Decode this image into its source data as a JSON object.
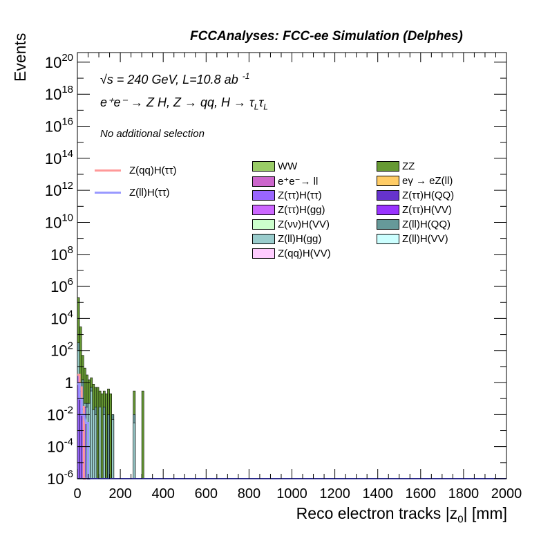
{
  "title": "FCCAnalyses: FCC-ee Simulation (Delphes)",
  "annotations": {
    "energy_prefix": "√",
    "energy_text": "s = 240 GeV, L=10.8 ab",
    "energy_exp": "-1",
    "process_text": "e⁺e⁻ → Z H, Z → qq, H → τ",
    "process_sub1": "L",
    "process_tau2": "τ",
    "process_sub2": "L",
    "selection": "No additional selection"
  },
  "colors": {
    "WW": "#99cc66",
    "ZZ": "#669933",
    "ee_ll": "#cc66cc",
    "egamma": "#ffcc66",
    "tt_tt": "#9966ff",
    "tt_QQ": "#6633cc",
    "tt_gg": "#cc66ff",
    "tt_VV": "#9933ff",
    "vv_VV": "#ccffcc",
    "ll_QQ": "#669999",
    "ll_gg": "#99cccc",
    "ll_VV": "#ccffff",
    "qq_VV": "#ffccff",
    "sig_qq": "#ff9999",
    "sig_ll": "#9999ff"
  },
  "legend": {
    "signals": [
      {
        "key": "sig_qq",
        "label": "Z(qq)H(ττ)"
      },
      {
        "key": "sig_ll",
        "label": "Z(ll)H(ττ)"
      }
    ],
    "backgrounds": [
      {
        "key": "WW",
        "label": "WW"
      },
      {
        "key": "ZZ",
        "label": "ZZ"
      },
      {
        "key": "ee_ll",
        "label": "e⁺e⁻→ ll"
      },
      {
        "key": "egamma",
        "label": "eγ → eZ(ll)"
      },
      {
        "key": "tt_tt",
        "label": "Z(ττ)H(ττ)"
      },
      {
        "key": "tt_QQ",
        "label": "Z(ττ)H(QQ)"
      },
      {
        "key": "tt_gg",
        "label": "Z(ττ)H(gg)"
      },
      {
        "key": "tt_VV",
        "label": "Z(ττ)H(VV)"
      },
      {
        "key": "vv_VV",
        "label": "Z(νν)H(VV)"
      },
      {
        "key": "ll_QQ",
        "label": "Z(ll)H(QQ)"
      },
      {
        "key": "ll_gg",
        "label": "Z(ll)H(gg)"
      },
      {
        "key": "ll_VV",
        "label": "Z(ll)H(VV)"
      },
      {
        "key": "qq_VV",
        "label": "Z(qq)H(VV)"
      }
    ]
  },
  "chart_data": {
    "type": "bar",
    "xlabel": "Reco electron tracks |z",
    "xlabel_sub": "0",
    "xlabel_unit": "| [mm]",
    "ylabel": "Events",
    "xlim": [
      0,
      2000
    ],
    "ylim_log10": [
      -6,
      20.6
    ],
    "y_scale": "log",
    "x_ticks": [
      "0",
      "200",
      "400",
      "600",
      "800",
      "1000",
      "1200",
      "1400",
      "1600",
      "1800",
      "2000"
    ],
    "y_ticks": [
      {
        "base": "10",
        "exp": "20"
      },
      {
        "base": "10",
        "exp": "18"
      },
      {
        "base": "10",
        "exp": "16"
      },
      {
        "base": "10",
        "exp": "14"
      },
      {
        "base": "10",
        "exp": "12"
      },
      {
        "base": "10",
        "exp": "10"
      },
      {
        "base": "10",
        "exp": "8"
      },
      {
        "base": "10",
        "exp": "6"
      },
      {
        "base": "10",
        "exp": "4"
      },
      {
        "base": "10",
        "exp": "2"
      },
      {
        "base": "1",
        "exp": ""
      },
      {
        "base": "10",
        "exp": "-2"
      },
      {
        "base": "10",
        "exp": "-4"
      },
      {
        "base": "10",
        "exp": "-6"
      }
    ],
    "bin_width": 20,
    "stack_total": [
      {
        "x": 0,
        "w": 10,
        "y": 200000.0
      },
      {
        "x": 10,
        "w": 10,
        "y": 3000
      },
      {
        "x": 20,
        "w": 10,
        "y": 50
      },
      {
        "x": 30,
        "w": 10,
        "y": 8
      },
      {
        "x": 40,
        "w": 10,
        "y": 3
      },
      {
        "x": 50,
        "w": 10,
        "y": 1.5
      },
      {
        "x": 60,
        "w": 10,
        "y": 2
      },
      {
        "x": 70,
        "w": 10,
        "y": 0.8
      },
      {
        "x": 80,
        "w": 10,
        "y": 0.5
      },
      {
        "x": 90,
        "w": 10,
        "y": 0.5
      },
      {
        "x": 100,
        "w": 10,
        "y": 0.3
      },
      {
        "x": 110,
        "w": 10,
        "y": 0.2
      },
      {
        "x": 120,
        "w": 10,
        "y": 0.3
      },
      {
        "x": 130,
        "w": 10,
        "y": 0.2
      },
      {
        "x": 140,
        "w": 10,
        "y": 0.4
      },
      {
        "x": 150,
        "w": 10,
        "y": 0.2
      },
      {
        "x": 160,
        "w": 10,
        "y": 0.01
      },
      {
        "x": 170,
        "w": 10,
        "y": 1e-06
      },
      {
        "x": 260,
        "w": 10,
        "y": 0.3
      },
      {
        "x": 270,
        "w": 10,
        "y": 1e-06
      },
      {
        "x": 300,
        "w": 10,
        "y": 0.3
      }
    ],
    "component_ZZ_floor": [
      {
        "x": 0,
        "w": 10,
        "y": 300
      },
      {
        "x": 20,
        "w": 10,
        "y": 1.5
      },
      {
        "x": 40,
        "w": 10,
        "y": 0.05
      },
      {
        "x": 60,
        "w": 10,
        "y": 0.5
      },
      {
        "x": 80,
        "w": 10,
        "y": 0.03
      },
      {
        "x": 100,
        "w": 10,
        "y": 0.02
      },
      {
        "x": 120,
        "w": 10,
        "y": 0.03
      },
      {
        "x": 140,
        "w": 10,
        "y": 0.01
      },
      {
        "x": 160,
        "w": 10,
        "y": 0.01
      },
      {
        "x": 260,
        "w": 10,
        "y": 0.01
      }
    ],
    "component_ll_gg": [
      {
        "x": 0,
        "w": 10,
        "y": 100
      },
      {
        "x": 10,
        "w": 10,
        "y": 1
      },
      {
        "x": 20,
        "w": 10,
        "y": 0.02
      },
      {
        "x": 30,
        "w": 10,
        "y": 0.05
      },
      {
        "x": 40,
        "w": 10,
        "y": 0.03
      },
      {
        "x": 50,
        "w": 10,
        "y": 0.05
      },
      {
        "x": 60,
        "w": 10,
        "y": 0.3
      },
      {
        "x": 70,
        "w": 10,
        "y": 0.02
      },
      {
        "x": 80,
        "w": 10,
        "y": 0.01
      },
      {
        "x": 100,
        "w": 10,
        "y": 0.03
      },
      {
        "x": 120,
        "w": 10,
        "y": 0.01
      },
      {
        "x": 160,
        "w": 10,
        "y": 0.005
      },
      {
        "x": 260,
        "w": 10,
        "y": 0.003
      }
    ],
    "component_tt": [
      {
        "x": 0,
        "w": 10,
        "y": 3
      },
      {
        "x": 10,
        "w": 10,
        "y": 0.3
      },
      {
        "x": 20,
        "w": 10,
        "y": 0.01
      },
      {
        "x": 30,
        "w": 10,
        "y": 0.03
      }
    ],
    "series": [
      {
        "name": "Z(qq)H(ττ)",
        "key": "sig_qq",
        "steps": [
          {
            "x": 0,
            "y": 3
          },
          {
            "x": 10,
            "y": 0.5
          },
          {
            "x": 20,
            "y": 0.03
          },
          {
            "x": 30,
            "y": 1e-06
          }
        ]
      },
      {
        "name": "Z(ll)H(ττ)",
        "key": "sig_ll",
        "steps": [
          {
            "x": 0,
            "y": 0.8
          },
          {
            "x": 10,
            "y": 0.1
          },
          {
            "x": 20,
            "y": 0.01
          },
          {
            "x": 40,
            "y": 0.003
          },
          {
            "x": 50,
            "y": 1e-06
          }
        ]
      }
    ]
  }
}
